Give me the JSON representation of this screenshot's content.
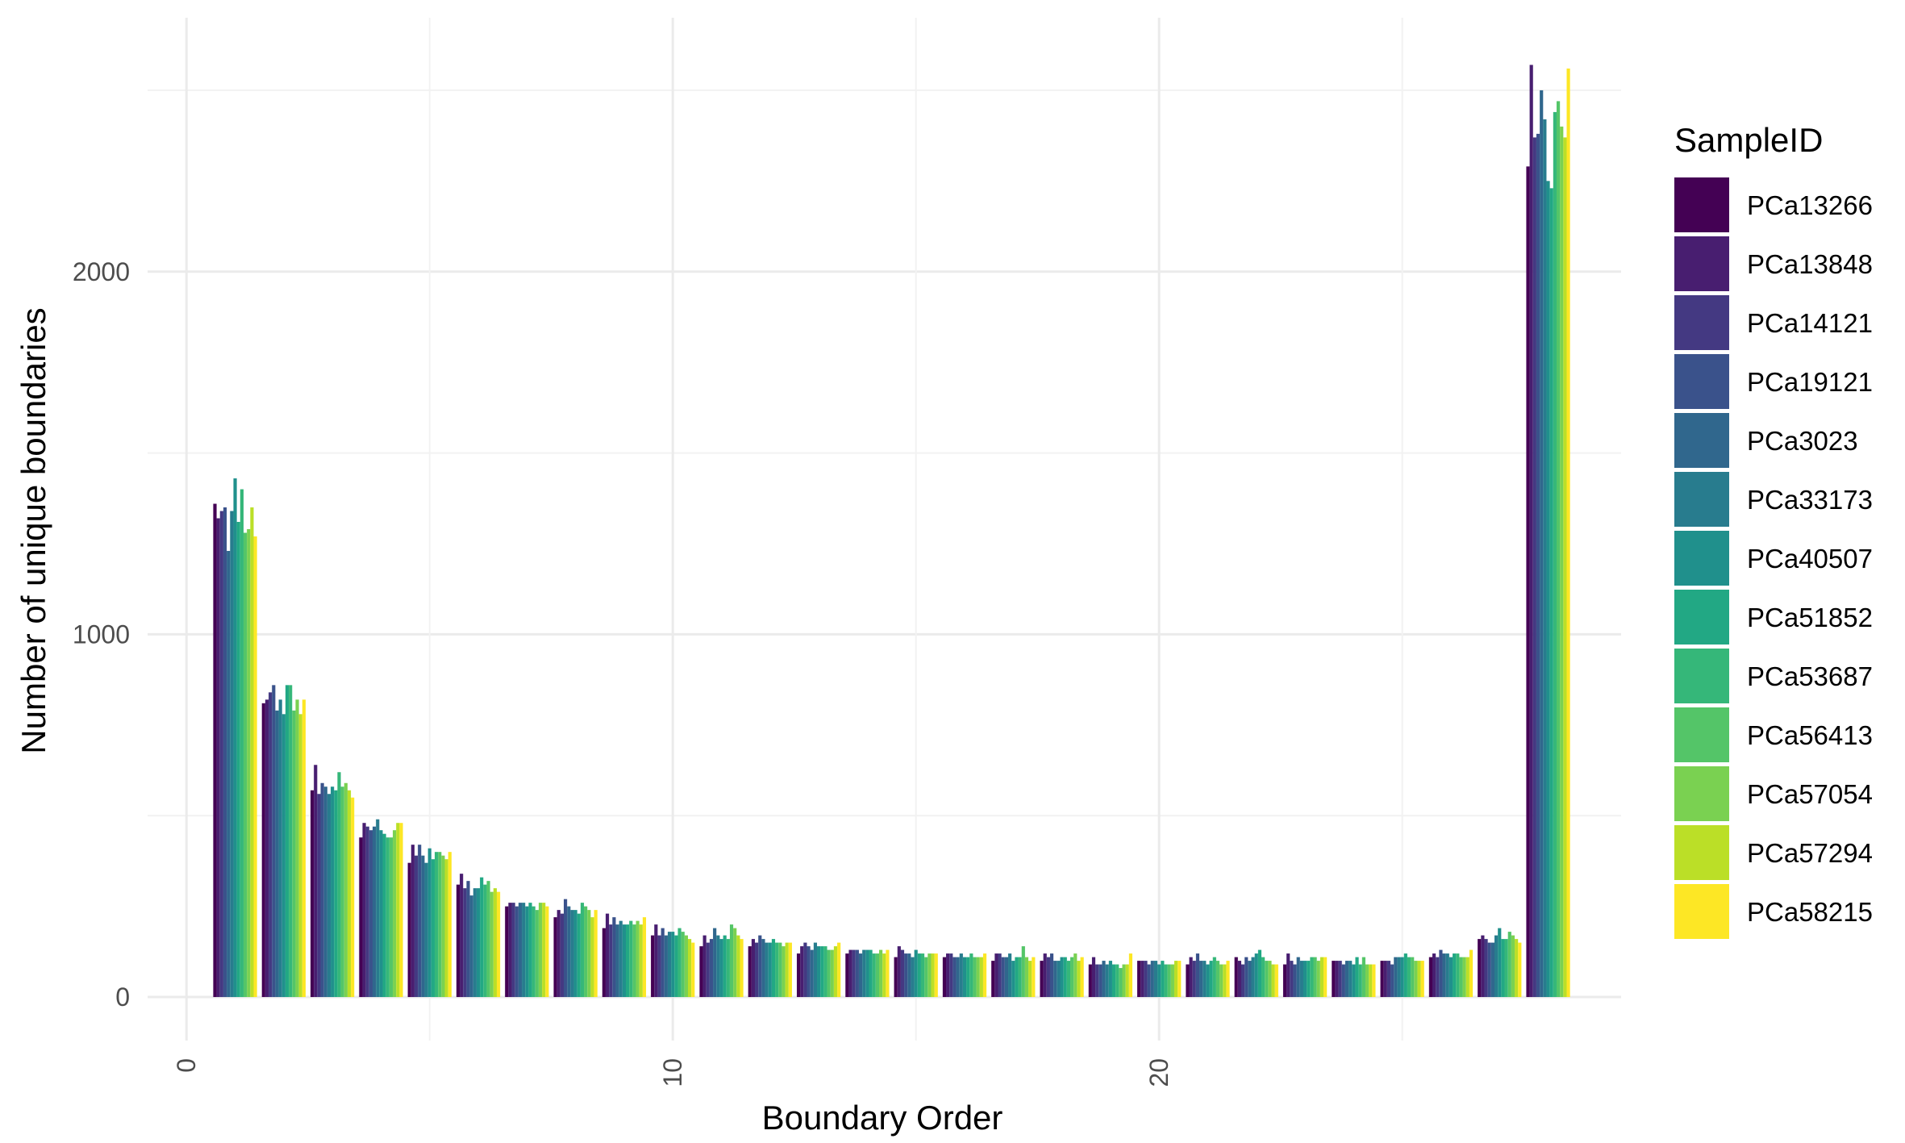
{
  "chart_data": {
    "type": "bar",
    "xlabel": "Boundary Order",
    "ylabel": "Number of unique boundaries",
    "xlim": [
      -0.8,
      29.5
    ],
    "ylim": [
      -120,
      2700
    ],
    "x_ticks": [
      0,
      10,
      20
    ],
    "y_ticks": [
      0,
      1000,
      2000
    ],
    "grid": true,
    "legend": {
      "title": "SampleID",
      "position": "right",
      "entries": [
        "PCa13266",
        "PCa13848",
        "PCa14121",
        "PCa19121",
        "PCa3023",
        "PCa33173",
        "PCa40507",
        "PCa51852",
        "PCa53687",
        "PCa56413",
        "PCa57054",
        "PCa57294",
        "PCa58215"
      ]
    },
    "categories": [
      1,
      2,
      3,
      4,
      5,
      6,
      7,
      8,
      9,
      10,
      11,
      12,
      13,
      14,
      15,
      16,
      17,
      18,
      19,
      20,
      21,
      22,
      23,
      24,
      25,
      26,
      27,
      28
    ],
    "series": [
      {
        "name": "PCa13266",
        "color": "#440154",
        "values": [
          1360,
          810,
          570,
          440,
          370,
          310,
          250,
          220,
          190,
          170,
          140,
          140,
          120,
          120,
          110,
          110,
          100,
          100,
          90,
          100,
          90,
          110,
          90,
          100,
          100,
          110,
          160,
          2290
        ]
      },
      {
        "name": "PCa13848",
        "color": "#481E70",
        "values": [
          1320,
          820,
          640,
          480,
          420,
          340,
          260,
          240,
          230,
          200,
          170,
          160,
          140,
          130,
          140,
          120,
          120,
          120,
          110,
          100,
          110,
          100,
          120,
          100,
          100,
          120,
          170,
          2570
        ]
      },
      {
        "name": "PCa14121",
        "color": "#443982",
        "values": [
          1340,
          840,
          560,
          470,
          390,
          300,
          260,
          230,
          200,
          170,
          150,
          150,
          150,
          130,
          130,
          120,
          120,
          110,
          90,
          100,
          100,
          90,
          100,
          100,
          100,
          110,
          160,
          2370
        ]
      },
      {
        "name": "PCa19121",
        "color": "#3A528B",
        "values": [
          1350,
          860,
          590,
          460,
          420,
          320,
          250,
          270,
          220,
          190,
          160,
          170,
          140,
          130,
          120,
          110,
          110,
          120,
          90,
          90,
          120,
          110,
          90,
          90,
          90,
          130,
          150,
          2380
        ]
      },
      {
        "name": "PCa3023",
        "color": "#30678D",
        "values": [
          1230,
          790,
          580,
          470,
          390,
          280,
          260,
          250,
          200,
          170,
          190,
          160,
          130,
          120,
          120,
          110,
          110,
          100,
          100,
          100,
          100,
          100,
          110,
          100,
          110,
          120,
          150,
          2500
        ]
      },
      {
        "name": "PCa33173",
        "color": "#287C8E",
        "values": [
          1340,
          820,
          560,
          490,
          370,
          300,
          260,
          240,
          210,
          180,
          170,
          150,
          150,
          130,
          110,
          120,
          120,
          100,
          90,
          100,
          100,
          110,
          100,
          100,
          110,
          120,
          170,
          2420
        ]
      },
      {
        "name": "PCa40507",
        "color": "#20908C",
        "values": [
          1430,
          780,
          580,
          460,
          410,
          300,
          250,
          240,
          200,
          180,
          160,
          150,
          140,
          130,
          130,
          110,
          100,
          110,
          100,
          90,
          90,
          120,
          100,
          90,
          110,
          110,
          190,
          2250
        ]
      },
      {
        "name": "PCa51852",
        "color": "#22A884",
        "values": [
          1310,
          860,
          570,
          450,
          380,
          330,
          260,
          230,
          200,
          170,
          170,
          160,
          140,
          130,
          120,
          110,
          110,
          110,
          90,
          100,
          100,
          130,
          100,
          110,
          120,
          120,
          160,
          2230
        ]
      },
      {
        "name": "PCa53687",
        "color": "#35B779",
        "values": [
          1400,
          860,
          620,
          440,
          400,
          310,
          250,
          260,
          210,
          190,
          160,
          150,
          140,
          120,
          120,
          120,
          110,
          100,
          90,
          90,
          110,
          110,
          110,
          90,
          110,
          120,
          160,
          2440
        ]
      },
      {
        "name": "PCa56413",
        "color": "#54C568",
        "values": [
          1280,
          790,
          580,
          440,
          400,
          320,
          240,
          250,
          200,
          180,
          200,
          150,
          130,
          120,
          110,
          110,
          140,
          110,
          80,
          90,
          100,
          100,
          110,
          110,
          110,
          110,
          180,
          2470
        ]
      },
      {
        "name": "PCa57054",
        "color": "#7AD151",
        "values": [
          1290,
          820,
          590,
          460,
          390,
          290,
          260,
          240,
          210,
          170,
          190,
          140,
          130,
          130,
          120,
          110,
          110,
          120,
          90,
          90,
          90,
          100,
          100,
          90,
          100,
          110,
          170,
          2400
        ]
      },
      {
        "name": "PCa57294",
        "color": "#BBDF27",
        "values": [
          1350,
          780,
          570,
          480,
          380,
          300,
          260,
          220,
          200,
          160,
          170,
          150,
          140,
          120,
          120,
          110,
          100,
          100,
          90,
          100,
          90,
          90,
          110,
          90,
          100,
          110,
          160,
          2370
        ]
      },
      {
        "name": "PCa58215",
        "color": "#FDE725",
        "values": [
          1270,
          820,
          550,
          480,
          400,
          290,
          250,
          240,
          220,
          150,
          160,
          150,
          150,
          130,
          120,
          120,
          110,
          110,
          120,
          100,
          100,
          90,
          110,
          90,
          100,
          130,
          150,
          2560
        ]
      }
    ]
  }
}
